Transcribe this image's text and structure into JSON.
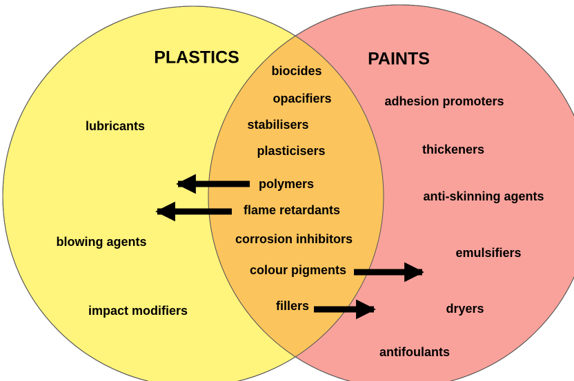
{
  "left": {
    "title": "PLASTICS",
    "items": [
      "lubricants",
      "blowing agents",
      "impact modifiers"
    ]
  },
  "overlap": {
    "items": [
      "biocides",
      "opacifiers",
      "stabilisers",
      "plasticisers",
      "polymers",
      "flame retardants",
      "corrosion inhibitors",
      "colour pigments",
      "fillers"
    ]
  },
  "right": {
    "title": "PAINTS",
    "items": [
      "adhesion promoters",
      "thickeners",
      "anti-skinning agents",
      "emulsifiers",
      "dryers",
      "antifoulants"
    ]
  }
}
